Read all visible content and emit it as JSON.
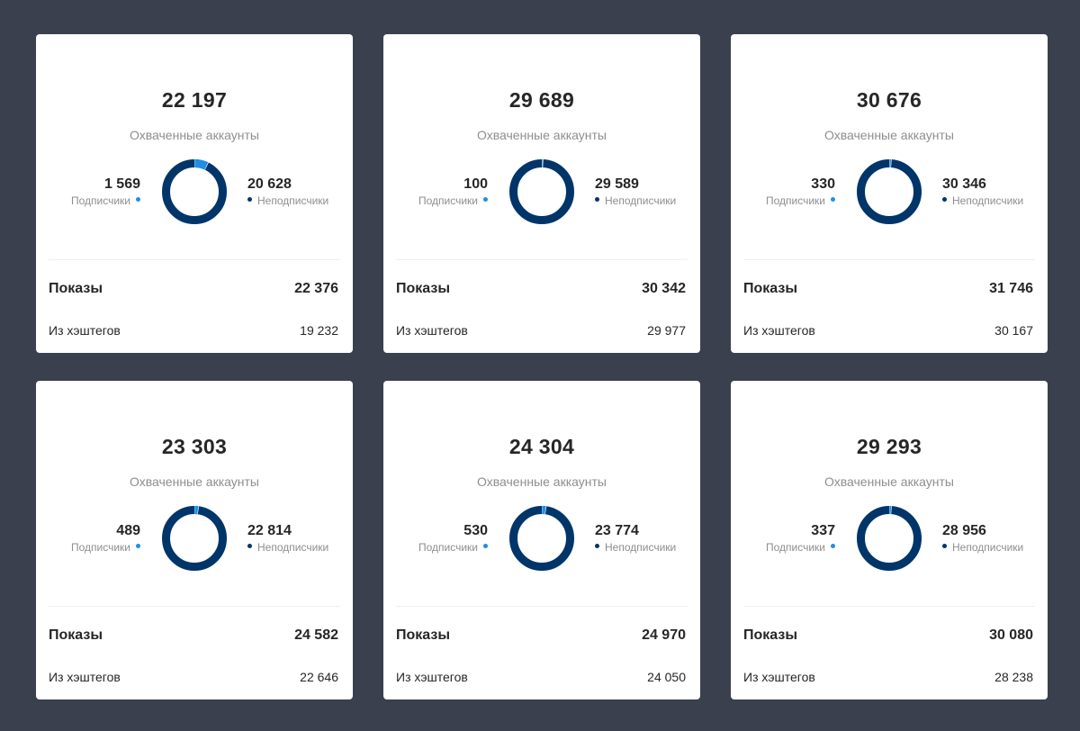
{
  "labels": {
    "reached": "Охваченные аккаунты",
    "followers": "Подписчики",
    "non_followers": "Неподписчики",
    "impressions": "Показы",
    "from_hashtags": "Из хэштегов"
  },
  "colors": {
    "background": "#3a404d",
    "followers": "#1f8fe5",
    "non_followers": "#003569"
  },
  "cards": [
    {
      "total": "22 197",
      "followers": "1 569",
      "non_followers": "20 628",
      "followers_share": 0.0707,
      "impressions": "22 376",
      "from_hashtags": "19 232"
    },
    {
      "total": "29 689",
      "followers": "100",
      "non_followers": "29 589",
      "followers_share": 0.0034,
      "impressions": "30 342",
      "from_hashtags": "29 977"
    },
    {
      "total": "30 676",
      "followers": "330",
      "non_followers": "30 346",
      "followers_share": 0.0108,
      "impressions": "31 746",
      "from_hashtags": "30 167"
    },
    {
      "total": "23 303",
      "followers": "489",
      "non_followers": "22 814",
      "followers_share": 0.021,
      "impressions": "24 582",
      "from_hashtags": "22 646"
    },
    {
      "total": "24 304",
      "followers": "530",
      "non_followers": "23 774",
      "followers_share": 0.0218,
      "impressions": "24 970",
      "from_hashtags": "24 050"
    },
    {
      "total": "29 293",
      "followers": "337",
      "non_followers": "28 956",
      "followers_share": 0.0115,
      "impressions": "30 080",
      "from_hashtags": "28 238"
    }
  ]
}
